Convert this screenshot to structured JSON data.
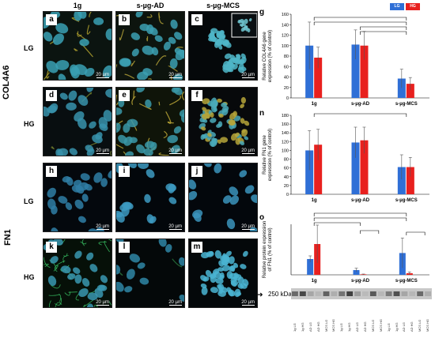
{
  "column_headers": [
    "1g",
    "s-µg-AD",
    "s-µg-MCS"
  ],
  "side_labels": [
    "COL4A6",
    "FN1"
  ],
  "row_labels": [
    "LG",
    "HG",
    "LG",
    "HG"
  ],
  "panels": [
    {
      "letter": "a",
      "scale": "20 µm"
    },
    {
      "letter": "b",
      "scale": "20 µm"
    },
    {
      "letter": "c",
      "scale": "20 µm"
    },
    {
      "letter": "d",
      "scale": "20 µm"
    },
    {
      "letter": "e",
      "scale": "20 µm"
    },
    {
      "letter": "f",
      "scale": "20 µm"
    },
    {
      "letter": "h",
      "scale": "20 µm"
    },
    {
      "letter": "i",
      "scale": "20 µm"
    },
    {
      "letter": "j",
      "scale": "20 µm"
    },
    {
      "letter": "k",
      "scale": "20 µm"
    },
    {
      "letter": "l",
      "scale": "20 µm"
    },
    {
      "letter": "m",
      "scale": "20 µm"
    }
  ],
  "legend": {
    "lg": "LG",
    "hg": "HG",
    "lg_color": "#2f6fd6",
    "hg_color": "#e8201e"
  },
  "chart_data": [
    {
      "letter": "g",
      "type": "bar",
      "ylabel_lines": [
        "Relative COL4A6 gene",
        "expression (% of control)"
      ],
      "categories": [
        "1g",
        "s-µg-AD",
        "s-µg-MCS"
      ],
      "ylim": [
        0,
        160
      ],
      "yticks": [
        0,
        20,
        40,
        60,
        80,
        100,
        120,
        140,
        160
      ],
      "series": [
        {
          "name": "LG",
          "values": [
            100,
            102,
            37
          ],
          "errors": [
            45,
            28,
            18
          ]
        },
        {
          "name": "HG",
          "values": [
            77,
            100,
            27
          ],
          "errors": [
            20,
            27,
            12
          ]
        }
      ]
    },
    {
      "letter": "n",
      "type": "bar",
      "ylabel_lines": [
        "Relative FN1 gene",
        "expression (% of control)"
      ],
      "categories": [
        "1g",
        "s-µg-AD",
        "s-µg-MCS"
      ],
      "ylim": [
        0,
        180
      ],
      "yticks": [
        0,
        20,
        40,
        60,
        80,
        100,
        120,
        140,
        160,
        180
      ],
      "series": [
        {
          "name": "LG",
          "values": [
            100,
            118,
            62
          ],
          "errors": [
            45,
            35,
            28
          ]
        },
        {
          "name": "HG",
          "values": [
            113,
            123,
            62
          ],
          "errors": [
            35,
            30,
            22
          ]
        }
      ]
    },
    {
      "letter": "o",
      "type": "bar",
      "ylabel_lines": [
        "Relative protein expression",
        "of FN1 (% of control)"
      ],
      "categories": [
        "1g",
        "s-µg-AD",
        "s-µg-MCS"
      ],
      "ylim": [
        0,
        320
      ],
      "series": [
        {
          "name": "LG",
          "values": [
            100,
            30,
            138
          ],
          "errors": [
            20,
            12,
            95
          ]
        },
        {
          "name": "HG",
          "values": [
            195,
            3,
            10
          ],
          "errors": [
            120,
            2,
            8
          ]
        }
      ]
    }
  ],
  "blot": {
    "size_label": "250 kDa",
    "lane_labels": [
      "1g LG",
      "1g HG",
      "AD LG",
      "AD HG",
      "MCS LG",
      "MCS HG",
      "1g LG",
      "1g HG",
      "AD LG",
      "AD HG",
      "MCS LG",
      "MCS HG",
      "1g LG",
      "1g HG",
      "AD LG",
      "AD HG",
      "MCS LG",
      "MCS HG"
    ]
  }
}
